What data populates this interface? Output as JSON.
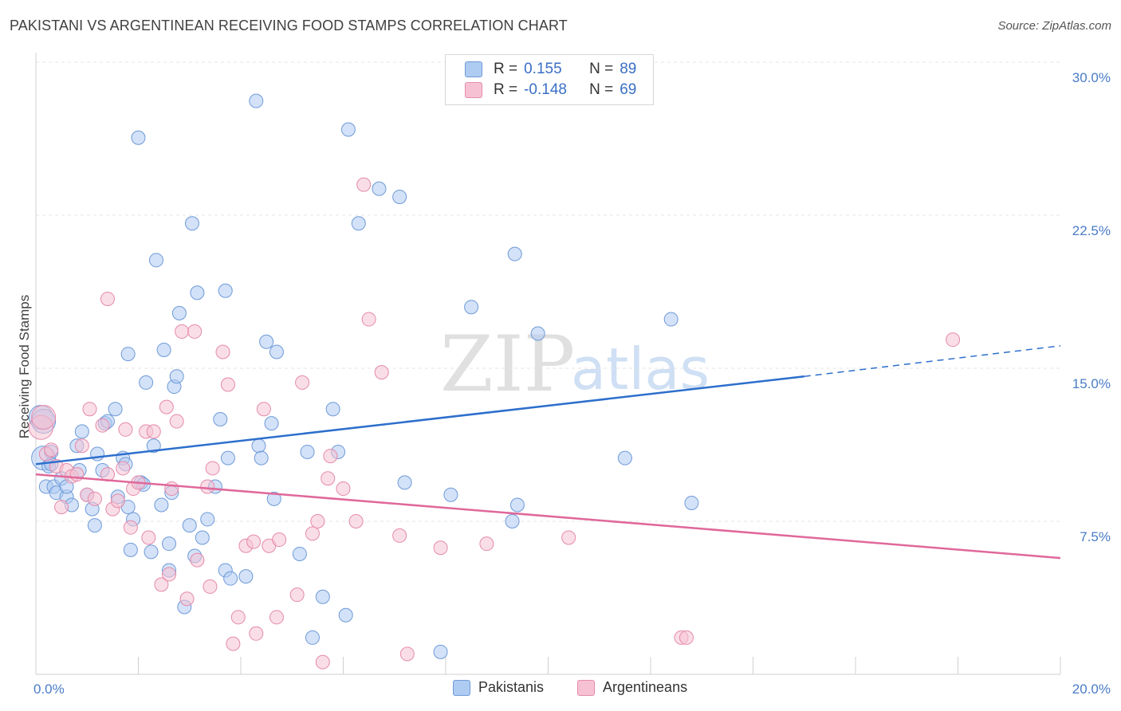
{
  "title": "PAKISTANI VS ARGENTINEAN RECEIVING FOOD STAMPS CORRELATION CHART",
  "source": "Source: ZipAtlas.com",
  "watermark": {
    "zip": "ZIP",
    "atlas": "atlas"
  },
  "colors": {
    "pakistani_fill": "#aecbf2",
    "pakistani_stroke": "#6f9ad8",
    "pakistani_line": "#2d6fcc",
    "argentinean_fill": "#f6c2d3",
    "argentinean_stroke": "#e58aab",
    "argentinean_line": "#e0689a",
    "tick_label": "#4a7cc7",
    "grid": "#e4e4e4"
  },
  "legend": {
    "rows": [
      {
        "r_label": "R =",
        "r_value": "0.155",
        "n_label": "N =",
        "n_value": "89"
      },
      {
        "r_label": "R =",
        "r_value": "-0.148",
        "n_label": "N =",
        "n_value": "69"
      }
    ]
  },
  "bottom_legend": [
    "Pakistanis",
    "Argentineans"
  ],
  "chart_data": {
    "type": "scatter",
    "title": "PAKISTANI VS ARGENTINEAN RECEIVING FOOD STAMPS CORRELATION CHART",
    "xlabel": "",
    "ylabel": "Receiving Food Stamps",
    "xlim": [
      0,
      20
    ],
    "ylim": [
      0,
      30
    ],
    "x_ticks": [
      0,
      20
    ],
    "x_tick_labels": [
      "0.0%",
      "20.0%"
    ],
    "y_ticks": [
      7.5,
      15,
      22.5,
      30
    ],
    "y_tick_labels": [
      "7.5%",
      "15.0%",
      "22.5%",
      "30.0%"
    ],
    "grid": "horizontal dashed",
    "legend_placement": "top-center",
    "series": [
      {
        "name": "Pakistanis",
        "r": 0.155,
        "n": 89,
        "trend": {
          "x": [
            0,
            15
          ],
          "y": [
            10.3,
            14.6
          ],
          "dashed_extension": {
            "x": [
              15,
              20
            ],
            "y": [
              14.6,
              16.1
            ]
          }
        },
        "points": [
          [
            0.1,
            12.6
          ],
          [
            0.15,
            10.6
          ],
          [
            0.2,
            9.2
          ],
          [
            0.25,
            10.2
          ],
          [
            0.3,
            10.9
          ],
          [
            0.35,
            9.2
          ],
          [
            0.4,
            8.9
          ],
          [
            0.5,
            9.6
          ],
          [
            0.6,
            8.7
          ],
          [
            0.7,
            8.3
          ],
          [
            0.8,
            11.2
          ],
          [
            0.85,
            10.0
          ],
          [
            0.9,
            11.9
          ],
          [
            1.0,
            8.8
          ],
          [
            1.1,
            8.1
          ],
          [
            1.15,
            7.3
          ],
          [
            1.2,
            10.8
          ],
          [
            1.3,
            10.0
          ],
          [
            1.35,
            12.3
          ],
          [
            1.4,
            12.4
          ],
          [
            1.55,
            13.0
          ],
          [
            1.6,
            8.7
          ],
          [
            1.7,
            10.6
          ],
          [
            1.75,
            10.3
          ],
          [
            1.8,
            8.2
          ],
          [
            1.8,
            15.7
          ],
          [
            1.85,
            6.1
          ],
          [
            1.9,
            7.6
          ],
          [
            2.0,
            26.3
          ],
          [
            2.05,
            9.4
          ],
          [
            2.1,
            9.3
          ],
          [
            2.15,
            14.3
          ],
          [
            2.25,
            6.0
          ],
          [
            2.3,
            11.2
          ],
          [
            2.35,
            20.3
          ],
          [
            2.45,
            8.3
          ],
          [
            2.5,
            15.9
          ],
          [
            2.6,
            5.1
          ],
          [
            2.6,
            6.4
          ],
          [
            2.65,
            8.9
          ],
          [
            2.7,
            14.1
          ],
          [
            2.75,
            14.6
          ],
          [
            2.8,
            17.7
          ],
          [
            2.9,
            3.3
          ],
          [
            3.0,
            7.3
          ],
          [
            3.05,
            22.1
          ],
          [
            3.1,
            5.8
          ],
          [
            3.15,
            18.7
          ],
          [
            3.25,
            6.7
          ],
          [
            3.35,
            7.6
          ],
          [
            3.5,
            9.2
          ],
          [
            3.6,
            12.5
          ],
          [
            3.7,
            18.8
          ],
          [
            3.7,
            5.1
          ],
          [
            3.75,
            10.6
          ],
          [
            3.8,
            4.7
          ],
          [
            4.1,
            4.8
          ],
          [
            4.3,
            28.1
          ],
          [
            4.35,
            11.2
          ],
          [
            4.4,
            10.6
          ],
          [
            4.5,
            16.3
          ],
          [
            4.6,
            12.3
          ],
          [
            4.65,
            8.6
          ],
          [
            4.7,
            15.8
          ],
          [
            5.15,
            5.9
          ],
          [
            5.3,
            10.9
          ],
          [
            5.4,
            1.8
          ],
          [
            5.6,
            3.8
          ],
          [
            5.8,
            13.0
          ],
          [
            5.9,
            10.9
          ],
          [
            6.05,
            2.9
          ],
          [
            6.1,
            26.7
          ],
          [
            6.3,
            22.1
          ],
          [
            6.7,
            23.8
          ],
          [
            7.1,
            23.4
          ],
          [
            7.2,
            9.4
          ],
          [
            7.9,
            1.1
          ],
          [
            8.1,
            8.8
          ],
          [
            8.5,
            18.0
          ],
          [
            9.3,
            7.5
          ],
          [
            9.35,
            20.6
          ],
          [
            9.4,
            8.3
          ],
          [
            9.8,
            16.7
          ],
          [
            11.5,
            10.6
          ],
          [
            12.4,
            17.4
          ],
          [
            12.8,
            8.4
          ],
          [
            0.15,
            12.4
          ],
          [
            0.3,
            10.3
          ],
          [
            0.6,
            9.2
          ]
        ]
      },
      {
        "name": "Argentineans",
        "r": -0.148,
        "n": 69,
        "trend": {
          "x": [
            0,
            20
          ],
          "y": [
            9.8,
            5.7
          ]
        },
        "points": [
          [
            0.1,
            12.1
          ],
          [
            0.15,
            12.6
          ],
          [
            0.2,
            10.8
          ],
          [
            0.3,
            11.0
          ],
          [
            0.4,
            10.2
          ],
          [
            0.5,
            8.2
          ],
          [
            0.6,
            10.0
          ],
          [
            0.7,
            9.7
          ],
          [
            0.8,
            9.8
          ],
          [
            0.9,
            11.2
          ],
          [
            1.0,
            8.8
          ],
          [
            1.05,
            13.0
          ],
          [
            1.15,
            8.6
          ],
          [
            1.3,
            12.2
          ],
          [
            1.4,
            9.8
          ],
          [
            1.4,
            18.4
          ],
          [
            1.5,
            8.1
          ],
          [
            1.6,
            8.5
          ],
          [
            1.7,
            10.1
          ],
          [
            1.75,
            12.0
          ],
          [
            1.85,
            7.2
          ],
          [
            1.9,
            9.1
          ],
          [
            2.0,
            9.4
          ],
          [
            2.15,
            11.9
          ],
          [
            2.2,
            6.7
          ],
          [
            2.3,
            11.9
          ],
          [
            2.45,
            4.4
          ],
          [
            2.55,
            13.1
          ],
          [
            2.6,
            4.9
          ],
          [
            2.65,
            9.1
          ],
          [
            2.75,
            12.4
          ],
          [
            2.85,
            16.8
          ],
          [
            2.95,
            3.7
          ],
          [
            3.1,
            16.8
          ],
          [
            3.15,
            5.6
          ],
          [
            3.35,
            9.2
          ],
          [
            3.4,
            4.3
          ],
          [
            3.45,
            10.1
          ],
          [
            3.65,
            15.8
          ],
          [
            3.75,
            14.2
          ],
          [
            3.85,
            1.5
          ],
          [
            3.95,
            2.8
          ],
          [
            4.1,
            6.3
          ],
          [
            4.25,
            6.5
          ],
          [
            4.3,
            2.0
          ],
          [
            4.45,
            13.0
          ],
          [
            4.55,
            6.3
          ],
          [
            4.7,
            2.8
          ],
          [
            4.75,
            6.6
          ],
          [
            5.1,
            3.9
          ],
          [
            5.2,
            14.3
          ],
          [
            5.4,
            6.9
          ],
          [
            5.5,
            7.5
          ],
          [
            5.6,
            0.6
          ],
          [
            5.7,
            9.6
          ],
          [
            5.75,
            10.7
          ],
          [
            6.0,
            9.1
          ],
          [
            6.25,
            7.5
          ],
          [
            6.4,
            24.0
          ],
          [
            6.5,
            17.4
          ],
          [
            6.75,
            14.8
          ],
          [
            7.1,
            6.8
          ],
          [
            7.25,
            1.0
          ],
          [
            7.9,
            6.2
          ],
          [
            8.8,
            6.4
          ],
          [
            10.4,
            6.7
          ],
          [
            12.6,
            1.8
          ],
          [
            12.7,
            1.8
          ],
          [
            17.9,
            16.4
          ]
        ]
      }
    ]
  }
}
